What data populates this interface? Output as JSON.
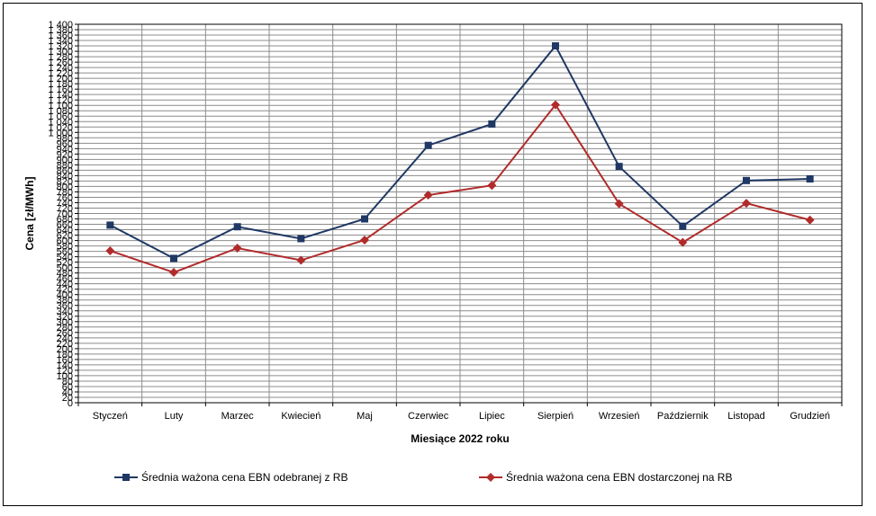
{
  "chart_data": {
    "type": "line",
    "title": "",
    "xlabel": "Miesiące 2022  roku",
    "ylabel": "Cena [zł/MWh]",
    "ylim": [
      0,
      1400
    ],
    "ytick_step": 20,
    "y_tick_labels": [
      "0",
      "20",
      "40",
      "60",
      "80",
      "100",
      "120",
      "140",
      "160",
      "180",
      "200",
      "220",
      "240",
      "260",
      "280",
      "300",
      "320",
      "340",
      "360",
      "380",
      "400",
      "420",
      "440",
      "460",
      "480",
      "500",
      "520",
      "540",
      "560",
      "580",
      "600",
      "620",
      "640",
      "660",
      "680",
      "700",
      "720",
      "740",
      "760",
      "780",
      "800",
      "820",
      "840",
      "860",
      "880",
      "900",
      "920",
      "940",
      "960",
      "980",
      "1 000",
      "1 020",
      "1 040",
      "1 060",
      "1 080",
      "1 100",
      "1 120",
      "1 140",
      "1 160",
      "1 180",
      "1 200",
      "1 220",
      "1 240",
      "1 260",
      "1 280",
      "1 300",
      "1 320",
      "1 340",
      "1 360",
      "1 380",
      "1 400"
    ],
    "grid": true,
    "legend_position": "bottom",
    "categories": [
      "Styczeń",
      "Luty",
      "Marzec",
      "Kwiecień",
      "Maj",
      "Czerwiec",
      "Lipiec",
      "Sierpień",
      "Wrzesień",
      "Październik",
      "Listopad",
      "Grudzień"
    ],
    "series": [
      {
        "name": "Średnia ważona cena EBN odebranej z RB",
        "color": "#1F3864",
        "marker": "square",
        "values": [
          657,
          534,
          651,
          607,
          680,
          952,
          1031,
          1320,
          874,
          653,
          822,
          828
        ]
      },
      {
        "name": "Średnia ważona cena EBN dostarczonej na RB",
        "color": "#B22B2B",
        "marker": "diamond",
        "values": [
          562,
          482,
          572,
          527,
          602,
          768,
          804,
          1102,
          736,
          593,
          738,
          676
        ]
      }
    ]
  }
}
